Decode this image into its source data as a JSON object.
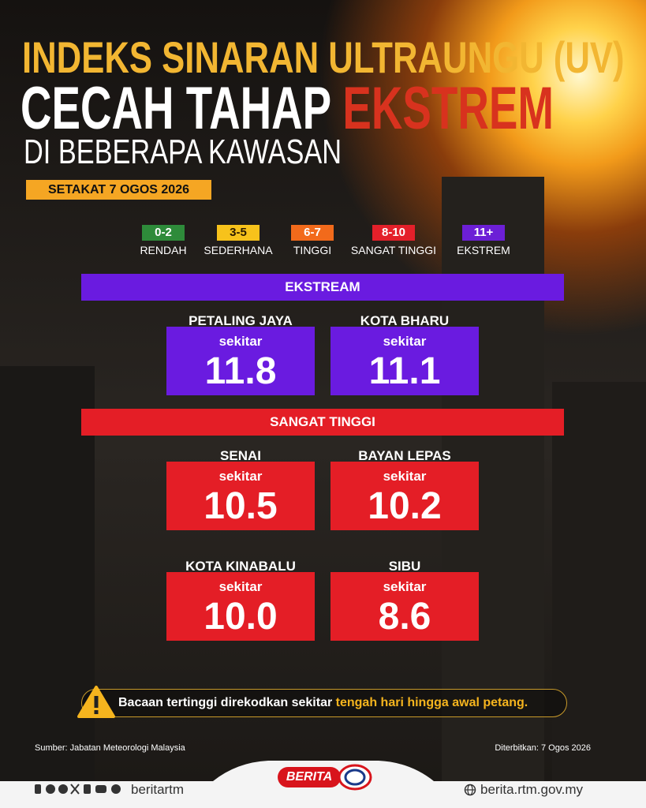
{
  "header": {
    "title_line1": "INDEKS SINARAN ULTRAUNGU (UV)",
    "title_line2": "CECAH TAHAP",
    "title_highlight": "EKSTREM",
    "title_line3": "DI BEBERAPA KAWASAN",
    "date": "SETAKAT 7 OGOS 2026"
  },
  "legend": [
    {
      "range": "0-2",
      "label": "RENDAH",
      "color": "#2e8b3a"
    },
    {
      "range": "3-5",
      "label": "SEDERHANA",
      "color": "#f7c21b"
    },
    {
      "range": "6-7",
      "label": "TINGGI",
      "color": "#f26a1b"
    },
    {
      "range": "8-10",
      "label": "SANGAT TINGGI",
      "color": "#e4202a"
    },
    {
      "range": "11+",
      "label": "EKSTREM",
      "color": "#6c1fd6"
    }
  ],
  "sections": [
    {
      "title": "EKSTREAM",
      "color": "#6a1be0",
      "items": [
        {
          "location": "PETALING JAYA",
          "prefix": "sekitar",
          "value": "11.8"
        },
        {
          "location": "KOTA BHARU",
          "prefix": "sekitar",
          "value": "11.1"
        }
      ]
    },
    {
      "title": "SANGAT TINGGI",
      "color": "#e41e26",
      "items": [
        {
          "location": "SENAI",
          "prefix": "sekitar",
          "value": "10.5"
        },
        {
          "location": "BAYAN LEPAS",
          "prefix": "sekitar",
          "value": "10.2"
        },
        {
          "location": "KOTA KINABALU",
          "prefix": "sekitar",
          "value": "10.0"
        },
        {
          "location": "SIBU",
          "prefix": "sekitar",
          "value": "8.6"
        }
      ]
    }
  ],
  "notice": {
    "text": "Bacaan tertinggi direkodkan sekitar",
    "highlight": "tengah hari hingga awal petang."
  },
  "footer": {
    "source": "Sumber: Jabatan Meteorologi Malaysia",
    "published": "Diterbitkan: 7 Ogos 2026",
    "brand": "BERITA",
    "handle": "beritartm",
    "website": "berita.rtm.gov.my"
  }
}
